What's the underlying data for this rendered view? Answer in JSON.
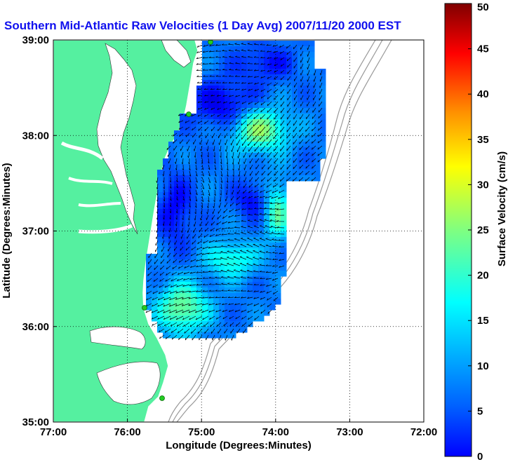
{
  "title": "Southern Mid-Atlantic Raw Velocities (1 Day Avg) 2007/11/20 2000 EST",
  "map": {
    "xlabel": "Longitude (Degrees:Minutes)",
    "ylabel": "Latitude (Degrees:Minutes)",
    "x_ticks": [
      {
        "value": -77,
        "label": "77:00"
      },
      {
        "value": -76,
        "label": "76:00"
      },
      {
        "value": -75,
        "label": "75:00"
      },
      {
        "value": -74,
        "label": "74:00"
      },
      {
        "value": -73,
        "label": "73:00"
      },
      {
        "value": -72,
        "label": "72:00"
      }
    ],
    "y_ticks": [
      {
        "value": 35,
        "label": "35:00"
      },
      {
        "value": 36,
        "label": "36:00"
      },
      {
        "value": 37,
        "label": "37:00"
      },
      {
        "value": 38,
        "label": "38:00"
      },
      {
        "value": 39,
        "label": "39:00"
      }
    ],
    "lon_range": [
      -77,
      -72
    ],
    "lat_range": [
      35,
      39
    ],
    "grid": "dotted",
    "land_color": "#55f0a0",
    "water_color": "#ffffff",
    "bathymetry_color": "#999999",
    "station_color": "#22cc22"
  },
  "colorbar": {
    "label": "Surface Velocity (cm/s)",
    "min": 0,
    "max": 50,
    "ticks": [
      {
        "value": 0,
        "label": "0"
      },
      {
        "value": 5,
        "label": "5"
      },
      {
        "value": 10,
        "label": "10"
      },
      {
        "value": 15,
        "label": "15"
      },
      {
        "value": 20,
        "label": "20"
      },
      {
        "value": 25,
        "label": "25"
      },
      {
        "value": 30,
        "label": "30"
      },
      {
        "value": 35,
        "label": "35"
      },
      {
        "value": 40,
        "label": "40"
      },
      {
        "value": 45,
        "label": "45"
      },
      {
        "value": 50,
        "label": "50"
      }
    ],
    "colormap": "jet"
  }
}
